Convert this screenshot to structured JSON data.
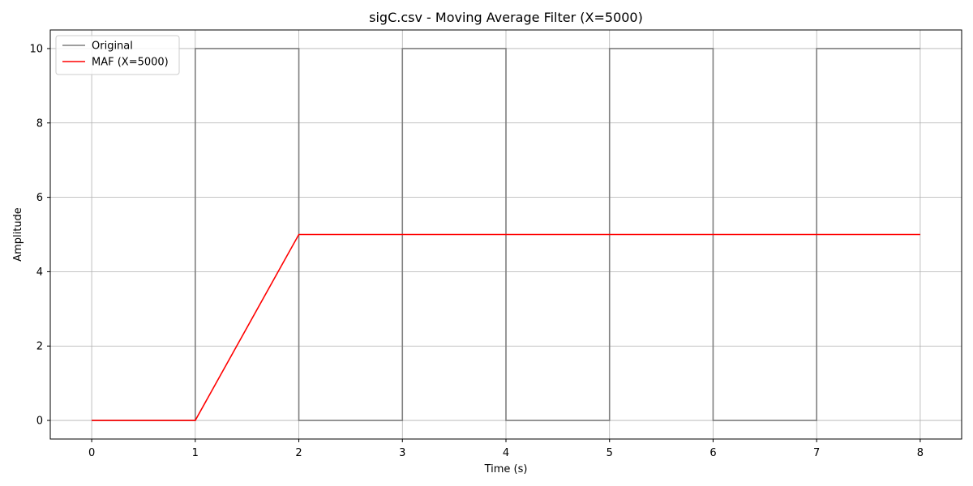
{
  "chart_data": {
    "type": "line",
    "title": "sigC.csv - Moving Average Filter (X=5000)",
    "xlabel": "Time (s)",
    "ylabel": "Amplitude",
    "xlim": [
      -0.4,
      8.4
    ],
    "ylim": [
      -0.5,
      10.5
    ],
    "xticks": [
      0,
      1,
      2,
      3,
      4,
      5,
      6,
      7,
      8
    ],
    "yticks": [
      0,
      2,
      4,
      6,
      8,
      10
    ],
    "xtick_labels": [
      "0",
      "1",
      "2",
      "3",
      "4",
      "5",
      "6",
      "7",
      "8"
    ],
    "ytick_labels": [
      "0",
      "2",
      "4",
      "6",
      "8",
      "10"
    ],
    "grid": true,
    "legend": {
      "placement": "top-left",
      "entries": [
        "Original",
        "MAF (X=5000)"
      ]
    },
    "series": [
      {
        "name": "Original",
        "color": "#7f7f7f",
        "x": [
          0,
          1,
          1,
          2,
          2,
          3,
          3,
          4,
          4,
          5,
          5,
          6,
          6,
          7,
          7,
          8
        ],
        "y": [
          0,
          0,
          10,
          10,
          0,
          0,
          10,
          10,
          0,
          0,
          10,
          10,
          0,
          0,
          10,
          10
        ]
      },
      {
        "name": "MAF (X=5000)",
        "color": "#ff0000",
        "x": [
          0,
          1,
          2,
          8
        ],
        "y": [
          0,
          0,
          5,
          5
        ]
      }
    ]
  }
}
